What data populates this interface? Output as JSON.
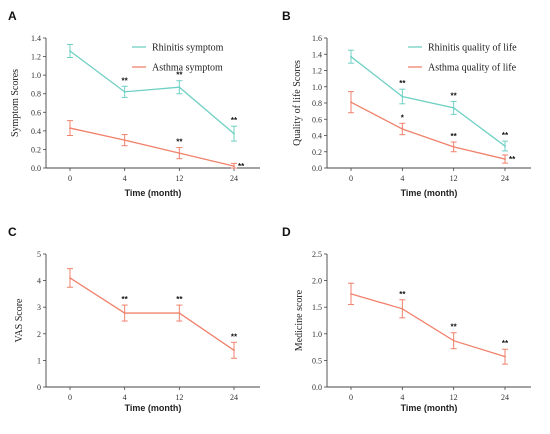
{
  "colors": {
    "teal": "#6fd0c4",
    "salmon": "#f0826c",
    "axis": "#444444"
  },
  "chart_data": [
    {
      "panel": "A",
      "type": "line",
      "ylabel": "Symptom Scores",
      "xlabel": "Time (month)",
      "categories": [
        "0",
        "4",
        "12",
        "24"
      ],
      "ylim": [
        0,
        1.4
      ],
      "yticks": [
        "0.0",
        "0.2",
        "0.4",
        "0.6",
        "0.8",
        "1.0",
        "1.2",
        "1.4"
      ],
      "legend": "top-right",
      "series": [
        {
          "name": "Rhinitis symptom",
          "color": "#6fd0c4",
          "values": [
            1.26,
            0.82,
            0.87,
            0.37
          ],
          "errors": [
            0.07,
            0.06,
            0.07,
            0.08
          ],
          "sig": [
            "",
            "**",
            "**",
            "**"
          ]
        },
        {
          "name": "Asthma symptom",
          "color": "#f0826c",
          "values": [
            0.43,
            0.3,
            0.16,
            0.02
          ],
          "errors": [
            0.08,
            0.06,
            0.06,
            0.03
          ],
          "sig": [
            "",
            "",
            "**",
            "**"
          ]
        }
      ]
    },
    {
      "panel": "B",
      "type": "line",
      "ylabel": "Quality of life Scores",
      "xlabel": "Time (month)",
      "categories": [
        "0",
        "4",
        "12",
        "24"
      ],
      "ylim": [
        0,
        1.6
      ],
      "yticks": [
        "0.0",
        "0.2",
        "0.4",
        "0.6",
        "0.8",
        "1.0",
        "1.2",
        "1.4",
        "1.6"
      ],
      "legend": "top-right",
      "series": [
        {
          "name": "Rhinitis quality of life",
          "color": "#6fd0c4",
          "values": [
            1.37,
            0.88,
            0.74,
            0.27
          ],
          "errors": [
            0.08,
            0.09,
            0.08,
            0.06
          ],
          "sig": [
            "",
            "**",
            "**",
            "**"
          ]
        },
        {
          "name": "Asthma quality of life",
          "color": "#f0826c",
          "values": [
            0.81,
            0.48,
            0.26,
            0.11
          ],
          "errors": [
            0.13,
            0.07,
            0.06,
            0.05
          ],
          "sig": [
            "",
            "*",
            "**",
            "**"
          ]
        }
      ]
    },
    {
      "panel": "C",
      "type": "line",
      "ylabel": "VAS Score",
      "xlabel": "Time (month)",
      "categories": [
        "0",
        "4",
        "12",
        "24"
      ],
      "ylim": [
        0,
        5
      ],
      "yticks": [
        "0",
        "1",
        "2",
        "3",
        "4",
        "5"
      ],
      "legend": "none",
      "series": [
        {
          "color": "#f0826c",
          "values": [
            4.1,
            2.78,
            2.78,
            1.38
          ],
          "errors": [
            0.35,
            0.3,
            0.3,
            0.3
          ],
          "sig": [
            "",
            "**",
            "**",
            "**"
          ]
        }
      ]
    },
    {
      "panel": "D",
      "type": "line",
      "ylabel": "Medicine score",
      "xlabel": "Time (month)",
      "categories": [
        "0",
        "4",
        "12",
        "24"
      ],
      "ylim": [
        0,
        2.5
      ],
      "yticks": [
        "0.0",
        "0.5",
        "1.0",
        "1.5",
        "2.0",
        "2.5"
      ],
      "legend": "none",
      "series": [
        {
          "color": "#f0826c",
          "values": [
            1.75,
            1.47,
            0.87,
            0.57
          ],
          "errors": [
            0.2,
            0.17,
            0.15,
            0.14
          ],
          "sig": [
            "",
            "**",
            "**",
            "**"
          ]
        }
      ]
    }
  ]
}
